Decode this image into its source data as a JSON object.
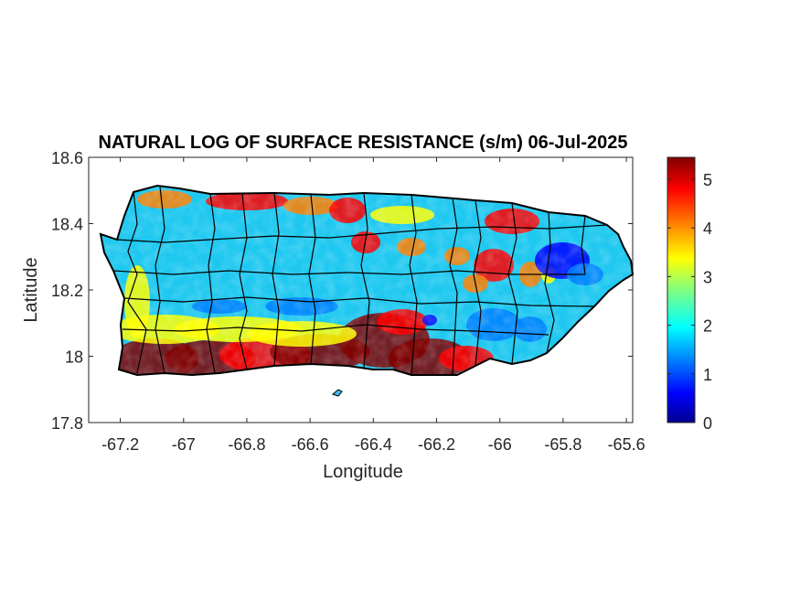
{
  "map": {
    "title": "NATURAL LOG OF SURFACE RESISTANCE (s/m) 06-Jul-2025",
    "xlabel": "Longitude",
    "ylabel": "Latitude",
    "xlim": [
      -67.3,
      -65.58
    ],
    "ylim": [
      17.8,
      18.6
    ],
    "x_ticks": [
      {
        "value": -67.2,
        "label": "-67.2"
      },
      {
        "value": -67.0,
        "label": "-67"
      },
      {
        "value": -66.8,
        "label": "-66.8"
      },
      {
        "value": -66.6,
        "label": "-66.6"
      },
      {
        "value": -66.4,
        "label": "-66.4"
      },
      {
        "value": -66.2,
        "label": "-66.2"
      },
      {
        "value": -66.0,
        "label": "-66"
      },
      {
        "value": -65.8,
        "label": "-65.8"
      },
      {
        "value": -65.6,
        "label": "-65.6"
      }
    ],
    "y_ticks": [
      {
        "value": 17.8,
        "label": "17.8"
      },
      {
        "value": 18.0,
        "label": "18"
      },
      {
        "value": 18.2,
        "label": "18.2"
      },
      {
        "value": 18.4,
        "label": "18.4"
      },
      {
        "value": 18.6,
        "label": "18.6"
      }
    ],
    "colorbar": {
      "colormap": "jet",
      "lim": [
        0,
        5.45
      ],
      "ticks": [
        {
          "value": 0,
          "label": "0"
        },
        {
          "value": 1,
          "label": "1"
        },
        {
          "value": 2,
          "label": "2"
        },
        {
          "value": 3,
          "label": "3"
        },
        {
          "value": 4,
          "label": "4"
        },
        {
          "value": 5,
          "label": "5"
        }
      ]
    },
    "colors": {
      "jet": [
        "#00008f",
        "#0000ff",
        "#0080ff",
        "#00ffff",
        "#80ff80",
        "#ffff00",
        "#ff8000",
        "#ff0000",
        "#800000"
      ],
      "boundary": "#000000",
      "axes": "#262626"
    }
  }
}
